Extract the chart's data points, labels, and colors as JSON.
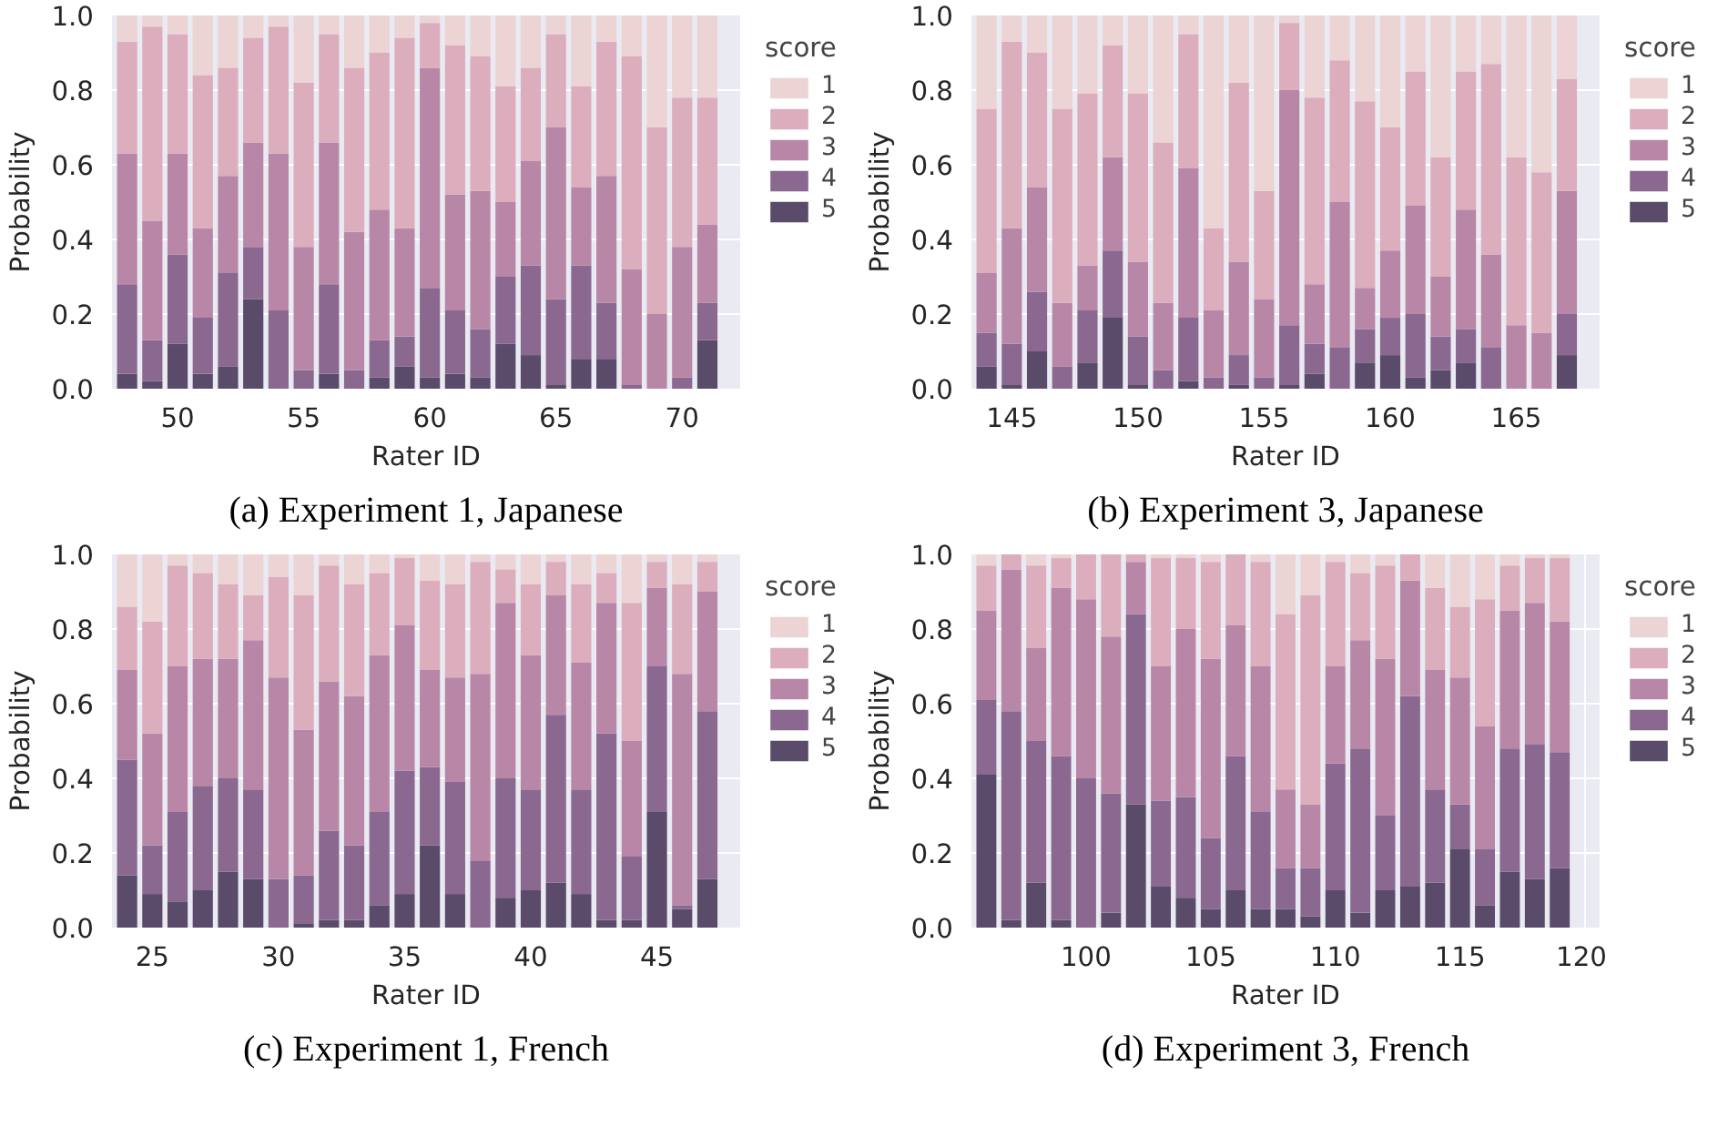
{
  "chart_data": [
    {
      "type": "bar",
      "stacked": true,
      "title": "(a) Experiment 1, Japanese",
      "xlabel": "Rater ID",
      "ylabel": "Probability",
      "legend_title": "score",
      "legend": "right",
      "grid": true,
      "x": [
        48,
        49,
        50,
        51,
        52,
        53,
        54,
        55,
        56,
        57,
        58,
        59,
        60,
        61,
        62,
        63,
        64,
        65,
        66,
        67,
        68,
        69,
        70,
        71
      ],
      "xlim": [
        47.4,
        72.3
      ],
      "xticks": [
        50,
        55,
        60,
        65,
        70
      ],
      "ylim": [
        0,
        1.0
      ],
      "yticks": [
        {
          "value": 0,
          "label": "0.0"
        },
        {
          "value": 0.2,
          "label": "0.2"
        },
        {
          "value": 0.4,
          "label": "0.4"
        },
        {
          "value": 0.6,
          "label": "0.6"
        },
        {
          "value": 0.8,
          "label": "0.8"
        },
        {
          "value": 1.0,
          "label": "1.0"
        }
      ],
      "series": [
        {
          "name": "5",
          "color": "#5a4b6b",
          "values": [
            0.04,
            0.02,
            0.12,
            0.04,
            0.06,
            0.24,
            0.0,
            0.0,
            0.04,
            0.0,
            0.03,
            0.06,
            0.03,
            0.04,
            0.03,
            0.12,
            0.09,
            0.01,
            0.08,
            0.08,
            0.0,
            0.0,
            0.0,
            0.13
          ]
        },
        {
          "name": "4",
          "color": "#8a6890",
          "values": [
            0.24,
            0.11,
            0.24,
            0.15,
            0.25,
            0.14,
            0.21,
            0.05,
            0.24,
            0.05,
            0.1,
            0.08,
            0.24,
            0.17,
            0.13,
            0.18,
            0.24,
            0.23,
            0.25,
            0.15,
            0.01,
            0.0,
            0.03,
            0.1
          ]
        },
        {
          "name": "3",
          "color": "#b887a7",
          "values": [
            0.35,
            0.32,
            0.27,
            0.24,
            0.26,
            0.28,
            0.42,
            0.33,
            0.38,
            0.37,
            0.35,
            0.29,
            0.59,
            0.31,
            0.37,
            0.2,
            0.28,
            0.46,
            0.21,
            0.34,
            0.31,
            0.2,
            0.35,
            0.21
          ]
        },
        {
          "name": "2",
          "color": "#dbadbd",
          "values": [
            0.3,
            0.52,
            0.32,
            0.41,
            0.29,
            0.28,
            0.34,
            0.44,
            0.29,
            0.44,
            0.42,
            0.51,
            0.12,
            0.4,
            0.36,
            0.31,
            0.25,
            0.25,
            0.27,
            0.36,
            0.57,
            0.5,
            0.4,
            0.34
          ]
        },
        {
          "name": "1",
          "color": "#ecd3d4",
          "values": [
            0.07,
            0.03,
            0.05,
            0.16,
            0.14,
            0.06,
            0.03,
            0.18,
            0.05,
            0.14,
            0.1,
            0.06,
            0.02,
            0.08,
            0.11,
            0.19,
            0.14,
            0.05,
            0.19,
            0.07,
            0.11,
            0.3,
            0.22,
            0.22
          ]
        }
      ]
    },
    {
      "type": "bar",
      "stacked": true,
      "title": "(b) Experiment 3, Japanese",
      "xlabel": "Rater ID",
      "ylabel": "Probability",
      "legend_title": "score",
      "legend": "right",
      "grid": true,
      "x": [
        144,
        145,
        146,
        147,
        148,
        149,
        150,
        151,
        152,
        153,
        154,
        155,
        156,
        157,
        158,
        159,
        160,
        161,
        162,
        163,
        164,
        165,
        166,
        167
      ],
      "xlim": [
        143.4,
        168.3
      ],
      "xticks": [
        145,
        150,
        155,
        160,
        165
      ],
      "ylim": [
        0,
        1.0
      ],
      "yticks": [
        {
          "value": 0,
          "label": "0.0"
        },
        {
          "value": 0.2,
          "label": "0.2"
        },
        {
          "value": 0.4,
          "label": "0.4"
        },
        {
          "value": 0.6,
          "label": "0.6"
        },
        {
          "value": 0.8,
          "label": "0.8"
        },
        {
          "value": 1.0,
          "label": "1.0"
        }
      ],
      "series": [
        {
          "name": "5",
          "color": "#5a4b6b",
          "values": [
            0.06,
            0.01,
            0.1,
            0.0,
            0.07,
            0.19,
            0.01,
            0.0,
            0.02,
            0.0,
            0.01,
            0.0,
            0.01,
            0.04,
            0.0,
            0.07,
            0.09,
            0.03,
            0.05,
            0.07,
            0.0,
            0.0,
            0.0,
            0.09
          ]
        },
        {
          "name": "4",
          "color": "#8a6890",
          "values": [
            0.09,
            0.11,
            0.16,
            0.06,
            0.14,
            0.18,
            0.13,
            0.05,
            0.17,
            0.03,
            0.08,
            0.03,
            0.16,
            0.08,
            0.11,
            0.09,
            0.1,
            0.17,
            0.09,
            0.09,
            0.11,
            0.0,
            0.0,
            0.11
          ]
        },
        {
          "name": "3",
          "color": "#b887a7",
          "values": [
            0.16,
            0.31,
            0.28,
            0.17,
            0.12,
            0.25,
            0.2,
            0.18,
            0.4,
            0.18,
            0.25,
            0.21,
            0.63,
            0.16,
            0.39,
            0.11,
            0.18,
            0.29,
            0.16,
            0.32,
            0.25,
            0.17,
            0.15,
            0.33
          ]
        },
        {
          "name": "2",
          "color": "#dbadbd",
          "values": [
            0.44,
            0.5,
            0.36,
            0.52,
            0.46,
            0.3,
            0.45,
            0.43,
            0.36,
            0.22,
            0.48,
            0.29,
            0.18,
            0.5,
            0.38,
            0.5,
            0.33,
            0.36,
            0.32,
            0.37,
            0.51,
            0.45,
            0.43,
            0.3
          ]
        },
        {
          "name": "1",
          "color": "#ecd3d4",
          "values": [
            0.25,
            0.07,
            0.1,
            0.25,
            0.21,
            0.08,
            0.21,
            0.34,
            0.05,
            0.57,
            0.18,
            0.47,
            0.02,
            0.22,
            0.12,
            0.23,
            0.3,
            0.15,
            0.38,
            0.15,
            0.13,
            0.38,
            0.42,
            0.17
          ]
        }
      ]
    },
    {
      "type": "bar",
      "stacked": true,
      "title": "(c) Experiment 1, French",
      "xlabel": "Rater ID",
      "ylabel": "Probability",
      "legend_title": "score",
      "legend": "right",
      "grid": true,
      "x": [
        24,
        25,
        26,
        27,
        28,
        29,
        30,
        31,
        32,
        33,
        34,
        35,
        36,
        37,
        38,
        39,
        40,
        41,
        42,
        43,
        44,
        45,
        46,
        47
      ],
      "xlim": [
        23.4,
        48.3
      ],
      "xticks": [
        25,
        30,
        35,
        40,
        45
      ],
      "ylim": [
        0,
        1.0
      ],
      "yticks": [
        {
          "value": 0,
          "label": "0.0"
        },
        {
          "value": 0.2,
          "label": "0.2"
        },
        {
          "value": 0.4,
          "label": "0.4"
        },
        {
          "value": 0.6,
          "label": "0.6"
        },
        {
          "value": 0.8,
          "label": "0.8"
        },
        {
          "value": 1.0,
          "label": "1.0"
        }
      ],
      "series": [
        {
          "name": "5",
          "color": "#5a4b6b",
          "values": [
            0.14,
            0.09,
            0.07,
            0.1,
            0.15,
            0.13,
            0.0,
            0.01,
            0.02,
            0.02,
            0.06,
            0.09,
            0.22,
            0.09,
            0.0,
            0.08,
            0.1,
            0.12,
            0.09,
            0.02,
            0.02,
            0.31,
            0.05,
            0.13
          ]
        },
        {
          "name": "4",
          "color": "#8a6890",
          "values": [
            0.31,
            0.13,
            0.24,
            0.28,
            0.25,
            0.24,
            0.13,
            0.13,
            0.24,
            0.2,
            0.25,
            0.33,
            0.21,
            0.3,
            0.18,
            0.32,
            0.27,
            0.45,
            0.28,
            0.5,
            0.17,
            0.39,
            0.01,
            0.45
          ]
        },
        {
          "name": "3",
          "color": "#b887a7",
          "values": [
            0.24,
            0.3,
            0.39,
            0.34,
            0.32,
            0.4,
            0.54,
            0.39,
            0.4,
            0.4,
            0.42,
            0.39,
            0.26,
            0.28,
            0.5,
            0.47,
            0.36,
            0.32,
            0.34,
            0.35,
            0.31,
            0.21,
            0.62,
            0.32
          ]
        },
        {
          "name": "2",
          "color": "#dbadbd",
          "values": [
            0.17,
            0.3,
            0.27,
            0.23,
            0.2,
            0.12,
            0.27,
            0.36,
            0.31,
            0.3,
            0.22,
            0.18,
            0.24,
            0.25,
            0.3,
            0.09,
            0.19,
            0.09,
            0.21,
            0.08,
            0.37,
            0.07,
            0.24,
            0.08
          ]
        },
        {
          "name": "1",
          "color": "#ecd3d4",
          "values": [
            0.14,
            0.18,
            0.03,
            0.05,
            0.08,
            0.11,
            0.06,
            0.11,
            0.03,
            0.08,
            0.05,
            0.01,
            0.07,
            0.08,
            0.02,
            0.04,
            0.08,
            0.02,
            0.08,
            0.05,
            0.13,
            0.02,
            0.08,
            0.02
          ]
        }
      ]
    },
    {
      "type": "bar",
      "stacked": true,
      "title": "(d) Experiment 3, French",
      "xlabel": "Rater ID",
      "ylabel": "Probability",
      "legend_title": "score",
      "legend": "right",
      "grid": true,
      "x": [
        96,
        97,
        98,
        99,
        100,
        101,
        102,
        103,
        104,
        105,
        106,
        107,
        108,
        109,
        110,
        111,
        112,
        113,
        114,
        115,
        116,
        117,
        118,
        119
      ],
      "xlim": [
        95.4,
        120.6
      ],
      "xticks": [
        100,
        105,
        110,
        115,
        120
      ],
      "ylim": [
        0,
        1.0
      ],
      "yticks": [
        {
          "value": 0,
          "label": "0.0"
        },
        {
          "value": 0.2,
          "label": "0.2"
        },
        {
          "value": 0.4,
          "label": "0.4"
        },
        {
          "value": 0.6,
          "label": "0.6"
        },
        {
          "value": 0.8,
          "label": "0.8"
        },
        {
          "value": 1.0,
          "label": "1.0"
        }
      ],
      "series": [
        {
          "name": "5",
          "color": "#5a4b6b",
          "values": [
            0.41,
            0.02,
            0.12,
            0.02,
            0.0,
            0.04,
            0.33,
            0.11,
            0.08,
            0.05,
            0.1,
            0.05,
            0.05,
            0.03,
            0.1,
            0.04,
            0.1,
            0.11,
            0.12,
            0.21,
            0.06,
            0.15,
            0.13,
            0.16
          ]
        },
        {
          "name": "4",
          "color": "#8a6890",
          "values": [
            0.2,
            0.56,
            0.38,
            0.44,
            0.4,
            0.32,
            0.51,
            0.23,
            0.27,
            0.19,
            0.36,
            0.26,
            0.11,
            0.13,
            0.34,
            0.44,
            0.2,
            0.51,
            0.25,
            0.12,
            0.15,
            0.33,
            0.36,
            0.31
          ]
        },
        {
          "name": "3",
          "color": "#b887a7",
          "values": [
            0.24,
            0.38,
            0.25,
            0.45,
            0.48,
            0.42,
            0.14,
            0.36,
            0.45,
            0.48,
            0.35,
            0.39,
            0.21,
            0.17,
            0.26,
            0.29,
            0.42,
            0.31,
            0.32,
            0.34,
            0.33,
            0.37,
            0.38,
            0.35
          ]
        },
        {
          "name": "2",
          "color": "#dbadbd",
          "values": [
            0.12,
            0.04,
            0.22,
            0.08,
            0.12,
            0.22,
            0.02,
            0.29,
            0.19,
            0.26,
            0.19,
            0.28,
            0.47,
            0.56,
            0.28,
            0.18,
            0.25,
            0.07,
            0.22,
            0.19,
            0.34,
            0.12,
            0.12,
            0.17
          ]
        },
        {
          "name": "1",
          "color": "#ecd3d4",
          "values": [
            0.03,
            0.0,
            0.03,
            0.01,
            0.0,
            0.0,
            0.0,
            0.01,
            0.01,
            0.02,
            0.0,
            0.02,
            0.16,
            0.11,
            0.02,
            0.05,
            0.03,
            0.0,
            0.09,
            0.14,
            0.12,
            0.03,
            0.01,
            0.01
          ]
        }
      ]
    }
  ]
}
